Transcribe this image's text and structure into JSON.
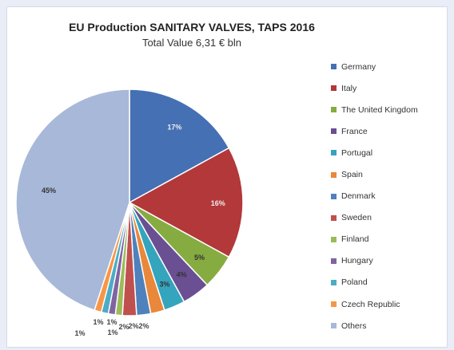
{
  "chart_data": {
    "type": "pie",
    "title": "EU Production SANITARY VALVES, TAPS 2016",
    "subtitle": "Total Value 6,31 € bln",
    "legend_position": "right",
    "slices": [
      {
        "name": "Germany",
        "value": 17,
        "label": "17%",
        "color": "#4570b4"
      },
      {
        "name": "Italy",
        "value": 16,
        "label": "16%",
        "color": "#b3383a"
      },
      {
        "name": "The United Kingdom",
        "legend_label": "The United Kingdom",
        "value": 5,
        "label": "5%",
        "color": "#86ac41"
      },
      {
        "name": "France",
        "value": 4,
        "label": "4%",
        "color": "#6a4f93"
      },
      {
        "name": "Portugal",
        "value": 3,
        "label": "3%",
        "color": "#35a4bd"
      },
      {
        "name": "Spain",
        "value": 2,
        "label": "2%",
        "color": "#e9883a"
      },
      {
        "name": "Denmark",
        "value": 2,
        "label": "2%",
        "color": "#4f81bd"
      },
      {
        "name": "Sweden",
        "value": 2,
        "label": "2%",
        "color": "#c0504d"
      },
      {
        "name": "Finland",
        "value": 1,
        "label": "1%",
        "color": "#9bbb59"
      },
      {
        "name": "Hungary",
        "value": 1,
        "label": "1%",
        "color": "#8064a2"
      },
      {
        "name": "Poland",
        "value": 1,
        "label": "1%",
        "color": "#4bacc6"
      },
      {
        "name": "Czech Republic",
        "value": 1,
        "label": "1%",
        "color": "#f79646"
      },
      {
        "name": "Others",
        "value": 45,
        "label": "45%",
        "color": "#a8b8d8"
      }
    ]
  }
}
